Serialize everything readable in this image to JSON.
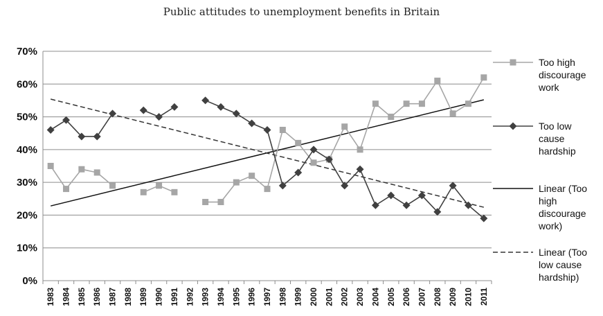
{
  "chart_data": {
    "type": "line",
    "title": "Public attitudes to unemployment benefits in Britain",
    "xlabel": "",
    "ylabel": "",
    "ylim": [
      0,
      70
    ],
    "ytick_labels": [
      "0%",
      "10%",
      "20%",
      "30%",
      "40%",
      "50%",
      "60%",
      "70%"
    ],
    "grid": "horizontal",
    "legend": "right",
    "categories": [
      "1983",
      "1984",
      "1985",
      "1986",
      "1987",
      "1988",
      "1989",
      "1990",
      "1991",
      "1992",
      "1993",
      "1994",
      "1995",
      "1996",
      "1997",
      "1998",
      "1999",
      "2000",
      "2001",
      "2002",
      "2003",
      "2004",
      "2005",
      "2006",
      "2007",
      "2008",
      "2009",
      "2010",
      "2011"
    ],
    "series": [
      {
        "name": "Too high discourage work",
        "marker": "square",
        "color": "#a6a6a6",
        "values": [
          35,
          28,
          34,
          33,
          29,
          null,
          27,
          29,
          27,
          null,
          24,
          24,
          30,
          32,
          28,
          46,
          42,
          36,
          37,
          47,
          40,
          54,
          50,
          54,
          54,
          61,
          51,
          54,
          62
        ]
      },
      {
        "name": "Too low cause hardship",
        "marker": "diamond",
        "color": "#404040",
        "values": [
          46,
          49,
          44,
          44,
          51,
          null,
          52,
          50,
          53,
          null,
          55,
          53,
          51,
          48,
          46,
          29,
          33,
          40,
          37,
          29,
          34,
          23,
          26,
          23,
          26,
          21,
          29,
          23,
          19
        ]
      }
    ],
    "trendlines": [
      {
        "name": "Linear (Too high discourage work)",
        "style": "solid",
        "color": "#111111",
        "start": 22.8,
        "end": 55.2
      },
      {
        "name": "Linear (Too low cause hardship)",
        "style": "dashed",
        "color": "#333333",
        "start": 55.4,
        "end": 22.4
      }
    ],
    "legend_entries": [
      {
        "lines": [
          "Too high",
          "discourage",
          "work"
        ]
      },
      {
        "lines": [
          "Too low",
          "cause",
          "hardship"
        ]
      },
      {
        "lines": [
          "Linear (Too",
          "high",
          "discourage",
          "work)"
        ]
      },
      {
        "lines": [
          "Linear (Too",
          "low cause",
          "hardship)"
        ]
      }
    ]
  }
}
